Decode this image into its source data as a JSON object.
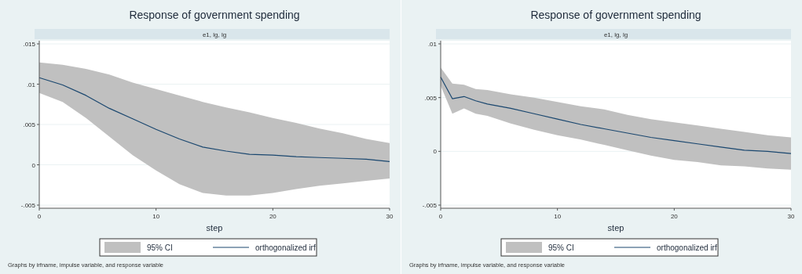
{
  "chart_data": [
    {
      "type": "line",
      "title": "Response of government spending",
      "subtitle": "e1, lg, lg",
      "xlabel": "step",
      "annotations": [
        "95% CI",
        "Graphs by irfname, impulse variable, and response variable"
      ],
      "xlim": [
        0,
        30
      ],
      "xticks": [
        0,
        10,
        20,
        30
      ],
      "ylim": [
        -0.005,
        0.015
      ],
      "yticks": [
        {
          "value": -0.005,
          "label": "-.005"
        },
        0,
        {
          "value": 0.005,
          "label": ".005"
        },
        {
          "value": 0.01,
          "label": ".01"
        },
        {
          "value": 0.015,
          "label": ".015"
        }
      ],
      "grid": "y",
      "legend": "bottom",
      "x": [
        0,
        2,
        4,
        6,
        8,
        10,
        12,
        14,
        16,
        18,
        20,
        22,
        24,
        26,
        28,
        30
      ],
      "series": [
        {
          "name": "orthogonalized irf",
          "type": "line",
          "color": "#1a476f",
          "values": [
            0.0108,
            0.0099,
            0.0086,
            0.007,
            0.0057,
            0.0044,
            0.0032,
            0.0022,
            0.0017,
            0.0013,
            0.0012,
            0.001,
            0.0009,
            0.0008,
            0.0007,
            0.0004
          ],
          "lower": [
            0.0089,
            0.0078,
            0.0058,
            0.0035,
            0.0012,
            -0.0007,
            -0.0024,
            -0.0035,
            -0.0038,
            -0.0038,
            -0.0035,
            -0.003,
            -0.0026,
            -0.0023,
            -0.002,
            -0.0017
          ],
          "upper": [
            0.0127,
            0.0124,
            0.0119,
            0.0112,
            0.0102,
            0.0094,
            0.0086,
            0.0078,
            0.0071,
            0.0065,
            0.0058,
            0.0052,
            0.0045,
            0.0039,
            0.0032,
            0.0027
          ]
        }
      ]
    },
    {
      "type": "line",
      "title": "Response of government spending",
      "subtitle": "e1, lg, lg",
      "xlabel": "step",
      "annotations": [
        "95% CI",
        "Graphs by irfname, impulse variable, and response variable"
      ],
      "xlim": [
        0,
        30
      ],
      "xticks": [
        0,
        10,
        20,
        30
      ],
      "ylim": [
        -0.005,
        0.01
      ],
      "yticks": [
        {
          "value": -0.005,
          "label": "-.005"
        },
        0,
        {
          "value": 0.005,
          "label": ".005"
        },
        {
          "value": 0.01,
          "label": ".01"
        }
      ],
      "grid": "y",
      "legend": "bottom",
      "x": [
        0,
        1,
        2,
        3,
        4,
        6,
        8,
        10,
        12,
        14,
        16,
        18,
        20,
        22,
        24,
        26,
        28,
        30
      ],
      "series": [
        {
          "name": "orthogonalized irf",
          "type": "line",
          "color": "#1a476f",
          "values": [
            0.0069,
            0.0049,
            0.0051,
            0.0047,
            0.0044,
            0.004,
            0.0035,
            0.003,
            0.0025,
            0.0021,
            0.0017,
            0.0013,
            0.001,
            0.0007,
            0.0004,
            0.0001,
            0,
            -0.0002
          ],
          "lower": [
            0.0061,
            0.0035,
            0.004,
            0.0035,
            0.0033,
            0.0026,
            0.002,
            0.0015,
            0.0011,
            0.0006,
            0.0001,
            -0.0004,
            -0.0008,
            -0.001,
            -0.0013,
            -0.0014,
            -0.0016,
            -0.0017
          ],
          "upper": [
            0.0078,
            0.0063,
            0.0062,
            0.0058,
            0.0057,
            0.0053,
            0.005,
            0.0046,
            0.0042,
            0.0039,
            0.0034,
            0.003,
            0.0027,
            0.0024,
            0.0021,
            0.0018,
            0.0015,
            0.0013
          ]
        }
      ]
    }
  ]
}
